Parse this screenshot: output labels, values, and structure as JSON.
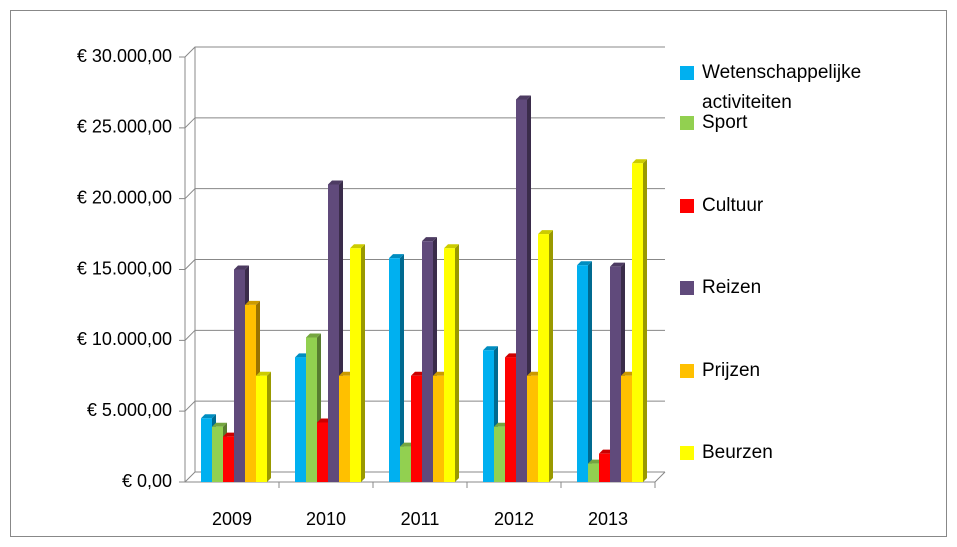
{
  "chart_data": {
    "type": "bar",
    "categories": [
      "2009",
      "2010",
      "2011",
      "2012",
      "2013"
    ],
    "series": [
      {
        "name": "Wetenschappelijke activiteiten",
        "color": "#00b0f0",
        "values": [
          4500,
          8800,
          15800,
          9300,
          15300
        ]
      },
      {
        "name": "Sport",
        "color": "#92d050",
        "values": [
          3900,
          10200,
          2500,
          3900,
          1300
        ]
      },
      {
        "name": "Cultuur",
        "color": "#ff0000",
        "values": [
          3200,
          4200,
          7500,
          8800,
          2000
        ]
      },
      {
        "name": "Reizen",
        "color": "#604a7b",
        "values": [
          15000,
          21000,
          17000,
          27000,
          15200
        ]
      },
      {
        "name": "Prijzen",
        "color": "#ffc000",
        "values": [
          12500,
          7500,
          7500,
          7500,
          7500
        ]
      },
      {
        "name": "Beurzen",
        "color": "#ffff00",
        "values": [
          7500,
          16500,
          16500,
          17500,
          22500
        ]
      }
    ],
    "ylim": [
      0,
      30000
    ],
    "yticks": [
      {
        "value": 0,
        "label": "€ 0,00"
      },
      {
        "value": 5000,
        "label": "€ 5.000,00"
      },
      {
        "value": 10000,
        "label": "€ 10.000,00"
      },
      {
        "value": 15000,
        "label": "€ 15.000,00"
      },
      {
        "value": 20000,
        "label": "€ 20.000,00"
      },
      {
        "value": 25000,
        "label": "€ 25.000,00"
      },
      {
        "value": 30000,
        "label": "€ 30.000,00"
      }
    ],
    "grid": true,
    "legend": "right"
  }
}
